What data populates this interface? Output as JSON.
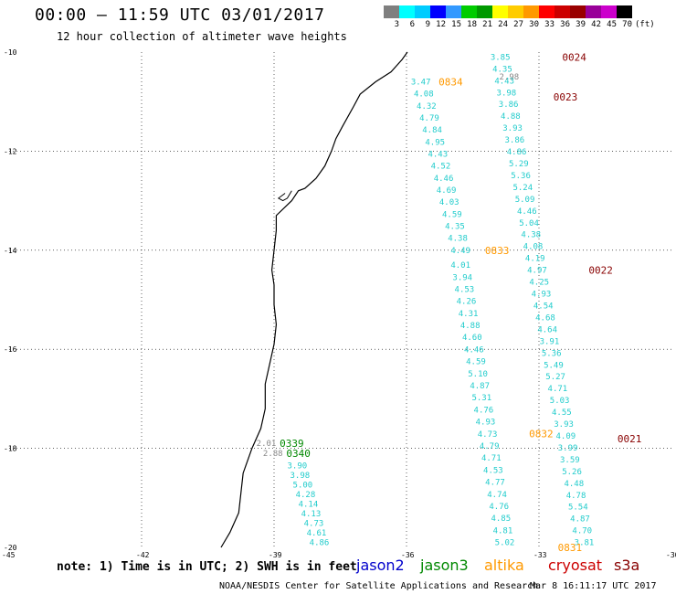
{
  "header": {
    "title": "00:00 – 11:59 UTC 03/01/2017",
    "subtitle": "12 hour collection of altimeter wave heights"
  },
  "legend": {
    "colors": [
      "#7f7f7f",
      "#00ffff",
      "#00ccff",
      "#0000ff",
      "#3399ff",
      "#00cc00",
      "#009900",
      "#ffff00",
      "#ffcc00",
      "#ff9900",
      "#ff0000",
      "#cc0000",
      "#990000",
      "#990099",
      "#cc00cc",
      "#000000"
    ],
    "labels": [
      "3",
      "6",
      "9",
      "12",
      "15",
      "18",
      "21",
      "24",
      "27",
      "30",
      "33",
      "36",
      "39",
      "42",
      "45",
      "70",
      "(ft)"
    ]
  },
  "axes": {
    "lon_ticks": [
      "-45",
      "-42",
      "-39",
      "-36",
      "-33",
      "-30"
    ],
    "lat_ticks": [
      "-10",
      "-12",
      "-14",
      "-16",
      "-18",
      "-20"
    ],
    "grid": "dotted"
  },
  "passes": [
    {
      "id": "0024",
      "color": "#880000"
    },
    {
      "id": "0834",
      "color": "#ff9900"
    },
    {
      "id": "0023",
      "color": "#880000"
    },
    {
      "id": "0833",
      "color": "#ff9900"
    },
    {
      "id": "0022",
      "color": "#880000"
    },
    {
      "id": "0832",
      "color": "#ff9900"
    },
    {
      "id": "0021",
      "color": "#880000"
    },
    {
      "id": "0831",
      "color": "#ff9900"
    },
    {
      "id": "0339",
      "color": "#008800"
    },
    {
      "id": "0340",
      "color": "#008800"
    }
  ],
  "tracks": {
    "left_gray": [
      "2.01",
      "2.88"
    ],
    "left": [
      "3.90",
      "3.98",
      "5.00",
      "4.28",
      "4.14",
      "4.13",
      "4.73",
      "4.61",
      "4.86"
    ],
    "middle_top": [
      "3.47",
      "4.08",
      "4.32",
      "4.79",
      "4.84",
      "4.95",
      "4.43",
      "4.52",
      "4.46",
      "4.69",
      "4.03",
      "4.59",
      "4.35",
      "4.38",
      "4.49"
    ],
    "middle_bottom": [
      "4.01",
      "3.94",
      "4.53",
      "4.26",
      "4.31",
      "4.88",
      "4.60",
      "4.46",
      "4.59",
      "5.10",
      "4.87",
      "5.31",
      "4.76",
      "4.93",
      "4.73",
      "4.79",
      "4.71",
      "4.53",
      "4.77",
      "4.74",
      "4.76",
      "4.85",
      "4.81",
      "5.02"
    ],
    "right_top_gray": "2.98",
    "right": [
      "3.85",
      "4.35",
      "4.43",
      "3.98",
      "3.86",
      "4.88",
      "3.93",
      "3.86",
      "4.86",
      "5.29",
      "5.36",
      "5.24",
      "5.09",
      "4.46",
      "5.04",
      "4.38",
      "4.08",
      "4.19",
      "4.97",
      "4.25",
      "4.93",
      "4.54",
      "4.68",
      "4.64",
      "3.91",
      "5.36",
      "5.49",
      "5.27",
      "4.71",
      "5.03",
      "4.55",
      "3.93",
      "4.09",
      "3.99",
      "3.59",
      "5.26",
      "4.48",
      "4.78",
      "5.54",
      "4.87",
      "4.70",
      "3.81"
    ]
  },
  "note": "note: 1) Time is in UTC; 2) SWH is in feet",
  "satellites": [
    {
      "name": "jason2",
      "color": "#0000cc"
    },
    {
      "name": "jason3",
      "color": "#008800"
    },
    {
      "name": "altika",
      "color": "#ff9900"
    },
    {
      "name": "cryosat",
      "color": "#cc0000"
    },
    {
      "name": "s3a",
      "color": "#880000"
    }
  ],
  "footer": {
    "credit": "NOAA/NESDIS Center for Satellite Applications and Research",
    "timestamp": "Mar  8 16:11:17 UTC 2017"
  }
}
